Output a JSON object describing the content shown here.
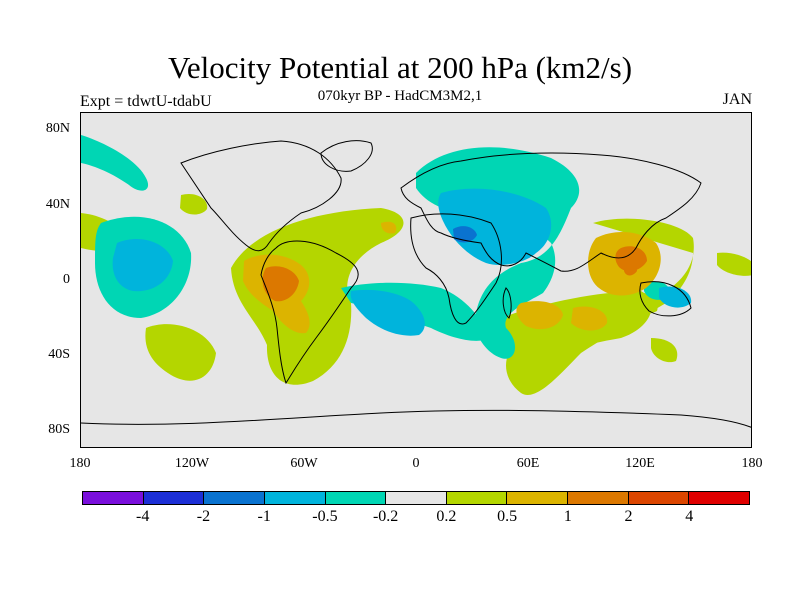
{
  "title": "Velocity Potential at 200 hPa (km2/s)",
  "subtitle": "070kyr BP - HadCM3M2,1",
  "experiment": "Expt = tdwtU-tdabU",
  "month": "JAN",
  "axes": {
    "y_ticks": [
      "80N",
      "40N",
      "0",
      "40S",
      "80S"
    ],
    "x_ticks": [
      "180",
      "120W",
      "60W",
      "0",
      "60E",
      "120E",
      "180"
    ]
  },
  "colorbar": {
    "colors": [
      "#7a0fdc",
      "#1c2fd6",
      "#0a73d0",
      "#00b4dc",
      "#00d6b4",
      "#e6e6e6",
      "#b4d600",
      "#dcb400",
      "#dc7800",
      "#dc4600",
      "#e00000"
    ],
    "labels": [
      "-4",
      "-2",
      "-1",
      "-0.5",
      "-0.2",
      "0.2",
      "0.5",
      "1",
      "2",
      "4"
    ]
  }
}
